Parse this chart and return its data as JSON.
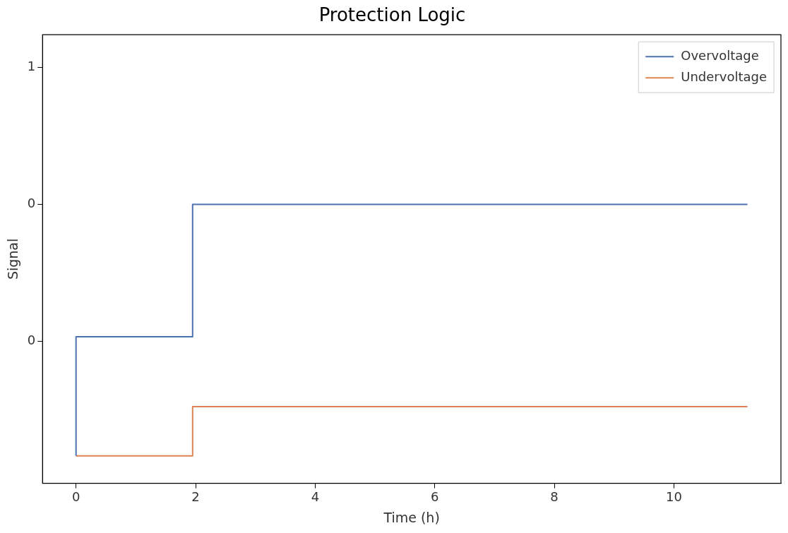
{
  "chart_data": {
    "type": "step",
    "title": "Protection Logic",
    "xlabel": "Time (h)",
    "ylabel": "Signal",
    "series": [
      {
        "name": "Overvoltage",
        "color": "#4c72b0",
        "x": [
          0,
          0,
          1.95,
          11.23
        ],
        "values": [
          -0.42,
          0.016,
          0.5,
          0.5
        ]
      },
      {
        "name": "Undervoltage",
        "color": "#dd8452",
        "x": [
          0,
          1.95,
          11.23
        ],
        "values": [
          -0.42,
          -0.24,
          -0.24
        ]
      }
    ],
    "xlim": [
      -0.56,
      11.79
    ],
    "xticks": [
      0,
      2,
      4,
      6,
      8,
      10
    ],
    "ylim": [
      -0.52,
      1.12
    ],
    "yticks": [
      {
        "value": 0,
        "label": "0"
      },
      {
        "value": 0.5,
        "label": "0"
      },
      {
        "value": 1,
        "label": "1"
      }
    ],
    "grid": false,
    "legend": "top right",
    "line_style": "solid",
    "marker": "none"
  }
}
